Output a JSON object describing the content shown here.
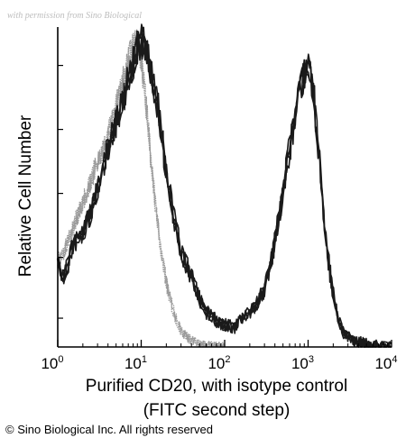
{
  "watermark": "with permission from Sino Biological",
  "copyright": "© Sino Biological Inc. All rights reserved",
  "colors": {
    "sample": "#1a1a1a",
    "isotype": "#9a9a9a",
    "axis": "#000000"
  },
  "chart_data": {
    "type": "line",
    "title": "",
    "xlabel": [
      "Purified CD20, with isotype control",
      "(FITC second step)"
    ],
    "ylabel": "Relative Cell Number",
    "x_scale": "log",
    "xlim": [
      1,
      10000
    ],
    "ylim": [
      0,
      1
    ],
    "grid": false,
    "x_ticks": [
      {
        "value": 1,
        "base": "10",
        "exp": "0"
      },
      {
        "value": 10,
        "base": "10",
        "exp": "1"
      },
      {
        "value": 100,
        "base": "10",
        "exp": "2"
      },
      {
        "value": 1000,
        "base": "10",
        "exp": "3"
      },
      {
        "value": 10000,
        "base": "10",
        "exp": "4"
      }
    ],
    "y_ticks": [
      0.09,
      0.28,
      0.48,
      0.68,
      0.88
    ],
    "series": [
      {
        "name": "",
        "style": "sample",
        "x": [
          1,
          1.2,
          1.5,
          2,
          2.5,
          3,
          4,
          5,
          6,
          7,
          8,
          9,
          10,
          12,
          14,
          17,
          20,
          25,
          30,
          40,
          50,
          60,
          80,
          100,
          130,
          170,
          220,
          300,
          400,
          500,
          600,
          700,
          800,
          900,
          1000,
          1100,
          1200,
          1350,
          1500,
          1800,
          2200,
          2600,
          3000,
          4000,
          6000,
          8000,
          10000
        ],
        "y": [
          0.26,
          0.22,
          0.31,
          0.36,
          0.42,
          0.5,
          0.62,
          0.7,
          0.77,
          0.84,
          0.89,
          0.93,
          0.97,
          0.91,
          0.83,
          0.7,
          0.55,
          0.4,
          0.3,
          0.22,
          0.15,
          0.11,
          0.08,
          0.07,
          0.06,
          0.09,
          0.12,
          0.18,
          0.33,
          0.48,
          0.62,
          0.73,
          0.8,
          0.86,
          0.88,
          0.84,
          0.76,
          0.6,
          0.44,
          0.24,
          0.11,
          0.05,
          0.03,
          0.015,
          0.005,
          0.003,
          0.002
        ]
      },
      {
        "name": "",
        "style": "isotype",
        "x": [
          1,
          1.2,
          1.5,
          2,
          2.5,
          3,
          4,
          5,
          6,
          7,
          8,
          9,
          10,
          12,
          14,
          17,
          20,
          25,
          30,
          40,
          50,
          60,
          80,
          100
        ],
        "y": [
          0.27,
          0.3,
          0.37,
          0.45,
          0.52,
          0.58,
          0.66,
          0.75,
          0.83,
          0.9,
          0.94,
          0.95,
          0.9,
          0.7,
          0.5,
          0.32,
          0.2,
          0.1,
          0.05,
          0.02,
          0.01,
          0.005,
          0.002,
          0.001
        ]
      }
    ]
  }
}
